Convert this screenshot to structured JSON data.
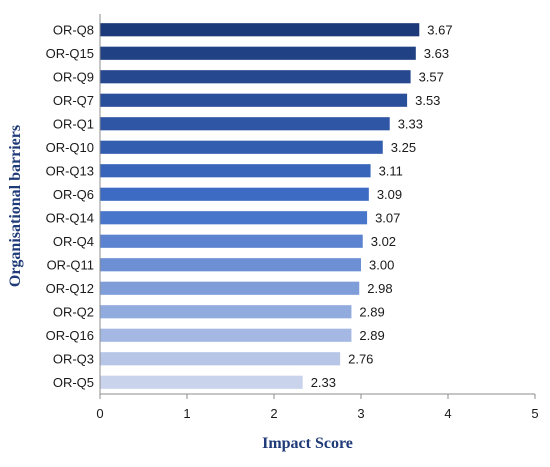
{
  "chart_data": {
    "type": "bar",
    "orientation": "horizontal",
    "xlabel": "Impact Score",
    "ylabel": "Organisational barriers",
    "xlim": [
      0,
      5
    ],
    "xticks": [
      "0",
      "1",
      "2",
      "3",
      "4",
      "5"
    ],
    "grid": false,
    "legend": "none",
    "categories": [
      "OR-Q8",
      "OR-Q15",
      "OR-Q9",
      "OR-Q7",
      "OR-Q1",
      "OR-Q10",
      "OR-Q13",
      "OR-Q6",
      "OR-Q14",
      "OR-Q4",
      "OR-Q11",
      "OR-Q12",
      "OR-Q2",
      "OR-Q16",
      "OR-Q3",
      "OR-Q5"
    ],
    "values": [
      3.67,
      3.63,
      3.57,
      3.53,
      3.33,
      3.25,
      3.11,
      3.09,
      3.07,
      3.02,
      3.0,
      2.98,
      2.89,
      2.89,
      2.76,
      2.33
    ],
    "value_labels": [
      "3.67",
      "3.63",
      "3.57",
      "3.53",
      "3.33",
      "3.25",
      "3.11",
      "3.09",
      "3.07",
      "3.02",
      "3.00",
      "2.98",
      "2.89",
      "2.89",
      "2.76",
      "2.33"
    ],
    "colors": {
      "bar_top": "#1c3a7a",
      "bar_mid": "#3f6fc9",
      "bar_bottom": "#c9d3ec",
      "axis_title": "#1f3a78",
      "axis": "#8c8c8c"
    }
  }
}
